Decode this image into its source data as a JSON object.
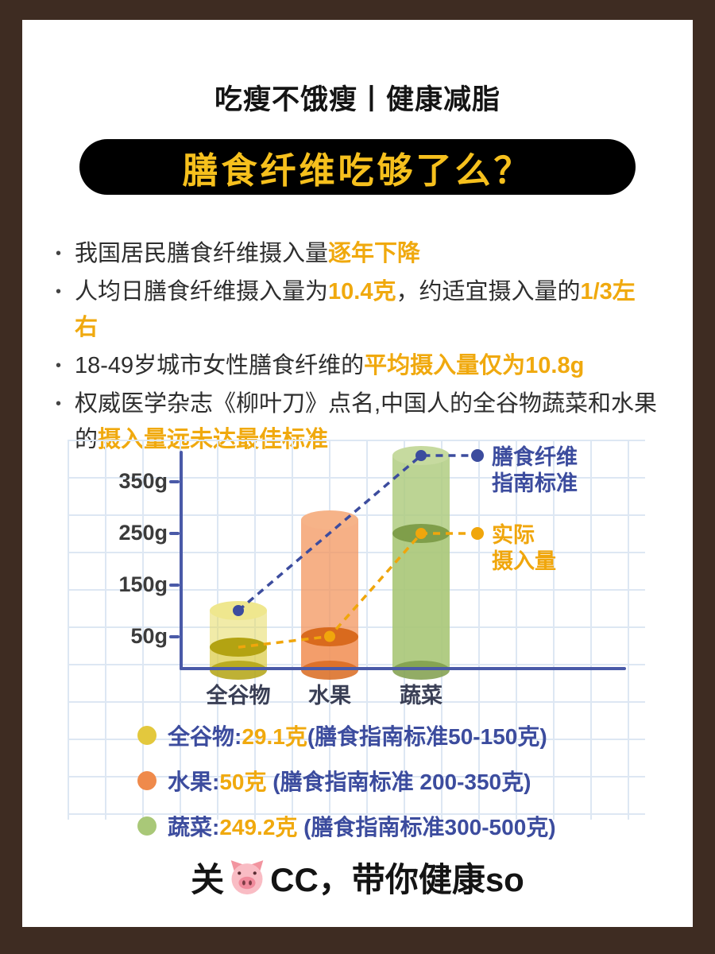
{
  "theme": {
    "outer_background": "#3e2c22",
    "card_background": "#ffffff",
    "accent_gold": "#f0a90e",
    "navy_blue": "#3c4c9e",
    "axis_blue": "#4a5aa8",
    "grid_blue": "#dde7f3",
    "pill_background": "#000000",
    "pill_text_color": "#f6c01d",
    "body_text_color": "#2e2e2e"
  },
  "header": {
    "subtitle": "吃瘦不饿瘦丨健康减脂",
    "title": "膳食纤维吃够了么？"
  },
  "bullets": [
    {
      "segments": [
        {
          "text": "我国居民膳食纤维摄入量",
          "highlight": false
        },
        {
          "text": "逐年下降",
          "highlight": true
        }
      ]
    },
    {
      "segments": [
        {
          "text": "人均日膳食纤维摄入量为",
          "highlight": false
        },
        {
          "text": "10.4克",
          "highlight": true
        },
        {
          "text": "，约适宜摄入量的",
          "highlight": false
        },
        {
          "text": "1/3左右",
          "highlight": true
        }
      ]
    },
    {
      "segments": [
        {
          "text": "18-49岁城市女性膳食纤维的",
          "highlight": false
        },
        {
          "text": "平均摄入量仅为10.8g",
          "highlight": true
        }
      ]
    },
    {
      "segments": [
        {
          "text": "权威医学杂志《柳叶刀》点名,中国人的全谷物蔬菜和水果的",
          "highlight": false
        },
        {
          "text": "摄入量远未达最佳标准",
          "highlight": true
        }
      ]
    }
  ],
  "chart_data": {
    "type": "bar",
    "categories": [
      "全谷物",
      "水果",
      "蔬菜"
    ],
    "series": [
      {
        "name": "膳食纤维指南标准",
        "values": [
          100,
          275,
          400
        ],
        "color": "#3c4c9e"
      },
      {
        "name": "实际摄入量",
        "values": [
          29.1,
          50,
          249.2
        ],
        "color": "#f0a60c"
      }
    ],
    "unit": "克",
    "guide_ranges": [
      [
        50,
        150
      ],
      [
        200,
        350
      ],
      [
        300,
        500
      ]
    ],
    "yticks": [
      {
        "label": "350g",
        "value": 350
      },
      {
        "label": "250g",
        "value": 250
      },
      {
        "label": "150g",
        "value": 150
      },
      {
        "label": "50g",
        "value": 50
      }
    ],
    "ylim": [
      0,
      430
    ],
    "grid": true,
    "chart_legend": {
      "guide_lines": [
        "膳食纤维",
        "指南标准"
      ],
      "actual_lines": [
        "实际",
        "摄入量"
      ]
    },
    "bar_colors": [
      {
        "top": "#efe78e",
        "body": "rgba(229,218,96,0.55)",
        "fill": "rgba(214,198,62,0.45)",
        "rim": "#b3a312"
      },
      {
        "top": "#f6b388",
        "body": "rgba(243,150,94,0.75)",
        "fill": "rgba(239,138,75,0.45)",
        "rim": "#d96a1e"
      },
      {
        "top": "#c6da9f",
        "body": "rgba(173,203,124,0.82)",
        "fill": "rgba(163,195,113,0.45)",
        "rim": "#7f9e4a"
      }
    ]
  },
  "legend_rows": [
    {
      "name": "全谷物:",
      "value": "29.1克",
      "standard": "(膳食指南标准50-150克)",
      "dot_color": "#e3c83d"
    },
    {
      "name": "水果:",
      "value": "50克",
      "standard": " (膳食指南标准 200-350克)",
      "dot_color": "#ef8a4b"
    },
    {
      "name": "蔬菜:",
      "value": "249.2克",
      "standard": " (膳食指南标准300-500克)",
      "dot_color": "#a9c878"
    }
  ],
  "footer": {
    "prefix": "关",
    "pig_icon": "pig-face",
    "suffix": "CC，带你健康so"
  }
}
